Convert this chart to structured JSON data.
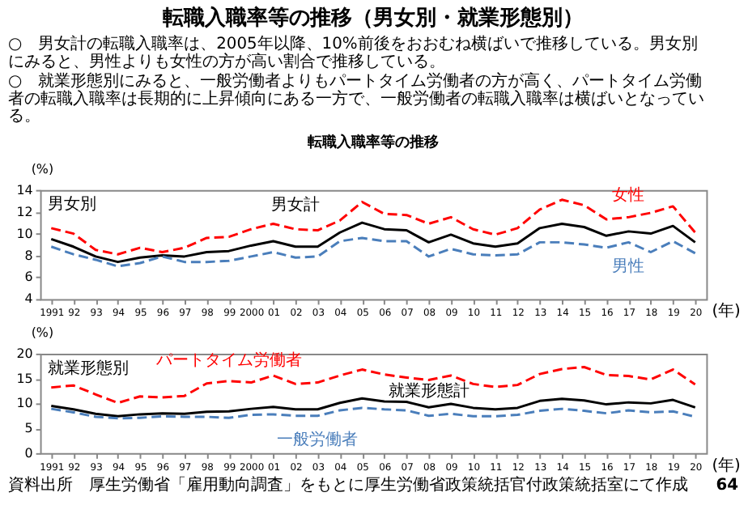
{
  "chart_data": [
    {
      "type": "other",
      "title": "転職入職率等の推移（男女別・就業形態別）",
      "annotations": [
        "○　男女計の転職入職率は、2005年以降、10%前後をおおむね横ばいで推移している。男女別にみると、男性よりも女性の方が高い割合で推移している。",
        "○　就業形態別にみると、一般労働者よりもパートタイム労働者の方が高く、パートタイム労働者の転職入職率は長期的に上昇傾向にある一方で、一般労働者の転職入職率は横ばいとなっている。"
      ]
    },
    {
      "type": "line",
      "title": "転職入職率等の推移",
      "xlabel": "(年)",
      "ylabel": "(%)",
      "grid": false,
      "categories": [
        "1991",
        "92",
        "93",
        "94",
        "95",
        "96",
        "97",
        "98",
        "99",
        "2000",
        "01",
        "02",
        "03",
        "04",
        "05",
        "06",
        "07",
        "08",
        "09",
        "10",
        "11",
        "12",
        "13",
        "14",
        "15",
        "16",
        "17",
        "18",
        "19",
        "20"
      ],
      "ylim": [
        4,
        14
      ],
      "yticks": [
        4,
        6,
        8,
        10,
        12,
        14
      ],
      "annotations": [
        "男女別"
      ],
      "series": [
        {
          "name": "女性",
          "color": "#ff0000",
          "line_style": "dashed",
          "values": [
            10.5,
            10.0,
            8.5,
            8.1,
            8.7,
            8.3,
            8.7,
            9.6,
            9.7,
            10.4,
            10.9,
            10.4,
            10.3,
            11.2,
            12.9,
            11.8,
            11.7,
            10.9,
            11.5,
            10.4,
            9.9,
            10.5,
            12.2,
            13.1,
            12.6,
            11.3,
            11.5,
            11.9,
            12.5,
            10.1
          ]
        },
        {
          "name": "男女計",
          "color": "#000000",
          "line_style": "solid",
          "values": [
            9.5,
            8.8,
            7.9,
            7.4,
            7.8,
            8.0,
            7.9,
            8.3,
            8.4,
            8.9,
            9.3,
            8.8,
            8.8,
            10.1,
            11.0,
            10.4,
            10.3,
            9.2,
            9.9,
            9.1,
            8.8,
            9.1,
            10.5,
            10.9,
            10.6,
            9.8,
            10.2,
            10.0,
            10.7,
            9.2
          ]
        },
        {
          "name": "男性",
          "color": "#4a7ebb",
          "line_style": "dashed",
          "values": [
            8.8,
            8.1,
            7.6,
            7.0,
            7.3,
            7.9,
            7.4,
            7.4,
            7.5,
            7.9,
            8.3,
            7.8,
            7.9,
            9.3,
            9.6,
            9.3,
            9.3,
            7.9,
            8.6,
            8.1,
            8.0,
            8.1,
            9.2,
            9.2,
            9.0,
            8.7,
            9.2,
            8.3,
            9.3,
            8.2
          ]
        }
      ]
    },
    {
      "type": "line",
      "xlabel": "(年)",
      "ylabel": "(%)",
      "grid": false,
      "categories": [
        "1991",
        "92",
        "93",
        "94",
        "95",
        "96",
        "97",
        "98",
        "99",
        "2000",
        "01",
        "02",
        "03",
        "04",
        "05",
        "06",
        "07",
        "08",
        "09",
        "10",
        "11",
        "12",
        "13",
        "14",
        "15",
        "16",
        "17",
        "18",
        "19",
        "20"
      ],
      "ylim": [
        0,
        20
      ],
      "yticks": [
        0,
        5,
        10,
        15,
        20
      ],
      "annotations": [
        "就業形態別",
        "資料出所　厚生労働省「雇用動向調査」をもとに厚生労働省政策統括官付政策統括室にて作成",
        "64"
      ],
      "series": [
        {
          "name": "パートタイム労働者",
          "color": "#ff0000",
          "line_style": "dashed",
          "values": [
            13.2,
            13.6,
            11.8,
            10.1,
            11.4,
            11.2,
            11.5,
            14.0,
            14.5,
            14.2,
            15.6,
            13.9,
            14.2,
            15.6,
            16.8,
            15.8,
            15.2,
            14.7,
            15.6,
            13.9,
            13.3,
            13.7,
            15.9,
            16.9,
            17.3,
            15.7,
            15.5,
            14.8,
            16.8,
            13.8
          ]
        },
        {
          "name": "就業形態計",
          "color": "#000000",
          "line_style": "solid",
          "values": [
            9.5,
            8.8,
            7.9,
            7.4,
            7.8,
            8.0,
            7.9,
            8.3,
            8.4,
            8.9,
            9.3,
            8.8,
            8.8,
            10.1,
            11.0,
            10.4,
            10.3,
            9.2,
            9.9,
            9.1,
            8.8,
            9.1,
            10.5,
            10.9,
            10.6,
            9.8,
            10.2,
            10.0,
            10.7,
            9.2
          ]
        },
        {
          "name": "一般労働者",
          "color": "#4a7ebb",
          "line_style": "dashed",
          "values": [
            8.9,
            8.2,
            7.3,
            7.0,
            7.1,
            7.4,
            7.3,
            7.3,
            7.1,
            7.7,
            7.8,
            7.5,
            7.5,
            8.6,
            9.1,
            8.8,
            8.6,
            7.5,
            7.9,
            7.4,
            7.4,
            7.7,
            8.5,
            8.9,
            8.5,
            8.0,
            8.6,
            8.2,
            8.4,
            7.3
          ]
        }
      ]
    }
  ]
}
